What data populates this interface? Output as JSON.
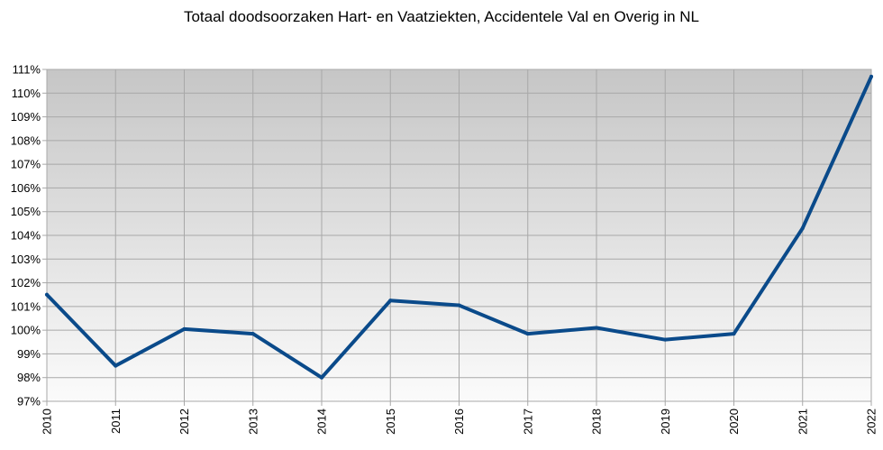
{
  "chart_data": {
    "type": "line",
    "title": "Totaal doodsoorzaken Hart- en Vaatziekten, Accidentele Val en Overig in NL",
    "xlabel": "",
    "ylabel": "",
    "x": [
      "2010",
      "2011",
      "2012",
      "2013",
      "2014",
      "2015",
      "2016",
      "2017",
      "2018",
      "2019",
      "2020",
      "2021",
      "2022"
    ],
    "series": [
      {
        "values": [
          101.5,
          98.5,
          100.05,
          99.85,
          98.0,
          101.25,
          101.05,
          99.85,
          100.1,
          99.6,
          99.85,
          104.3,
          110.7
        ]
      }
    ],
    "ylim": [
      97,
      111
    ],
    "yticks": [
      "97%",
      "98%",
      "99%",
      "100%",
      "101%",
      "102%",
      "103%",
      "104%",
      "105%",
      "106%",
      "107%",
      "108%",
      "109%",
      "110%",
      "111%"
    ],
    "grid": true,
    "legend": "none",
    "colors": {
      "line": "#0a4a8a",
      "plot_top": "#c6c6c6",
      "plot_bottom": "#fbfbfb",
      "grid": "#a8a8a8"
    }
  }
}
